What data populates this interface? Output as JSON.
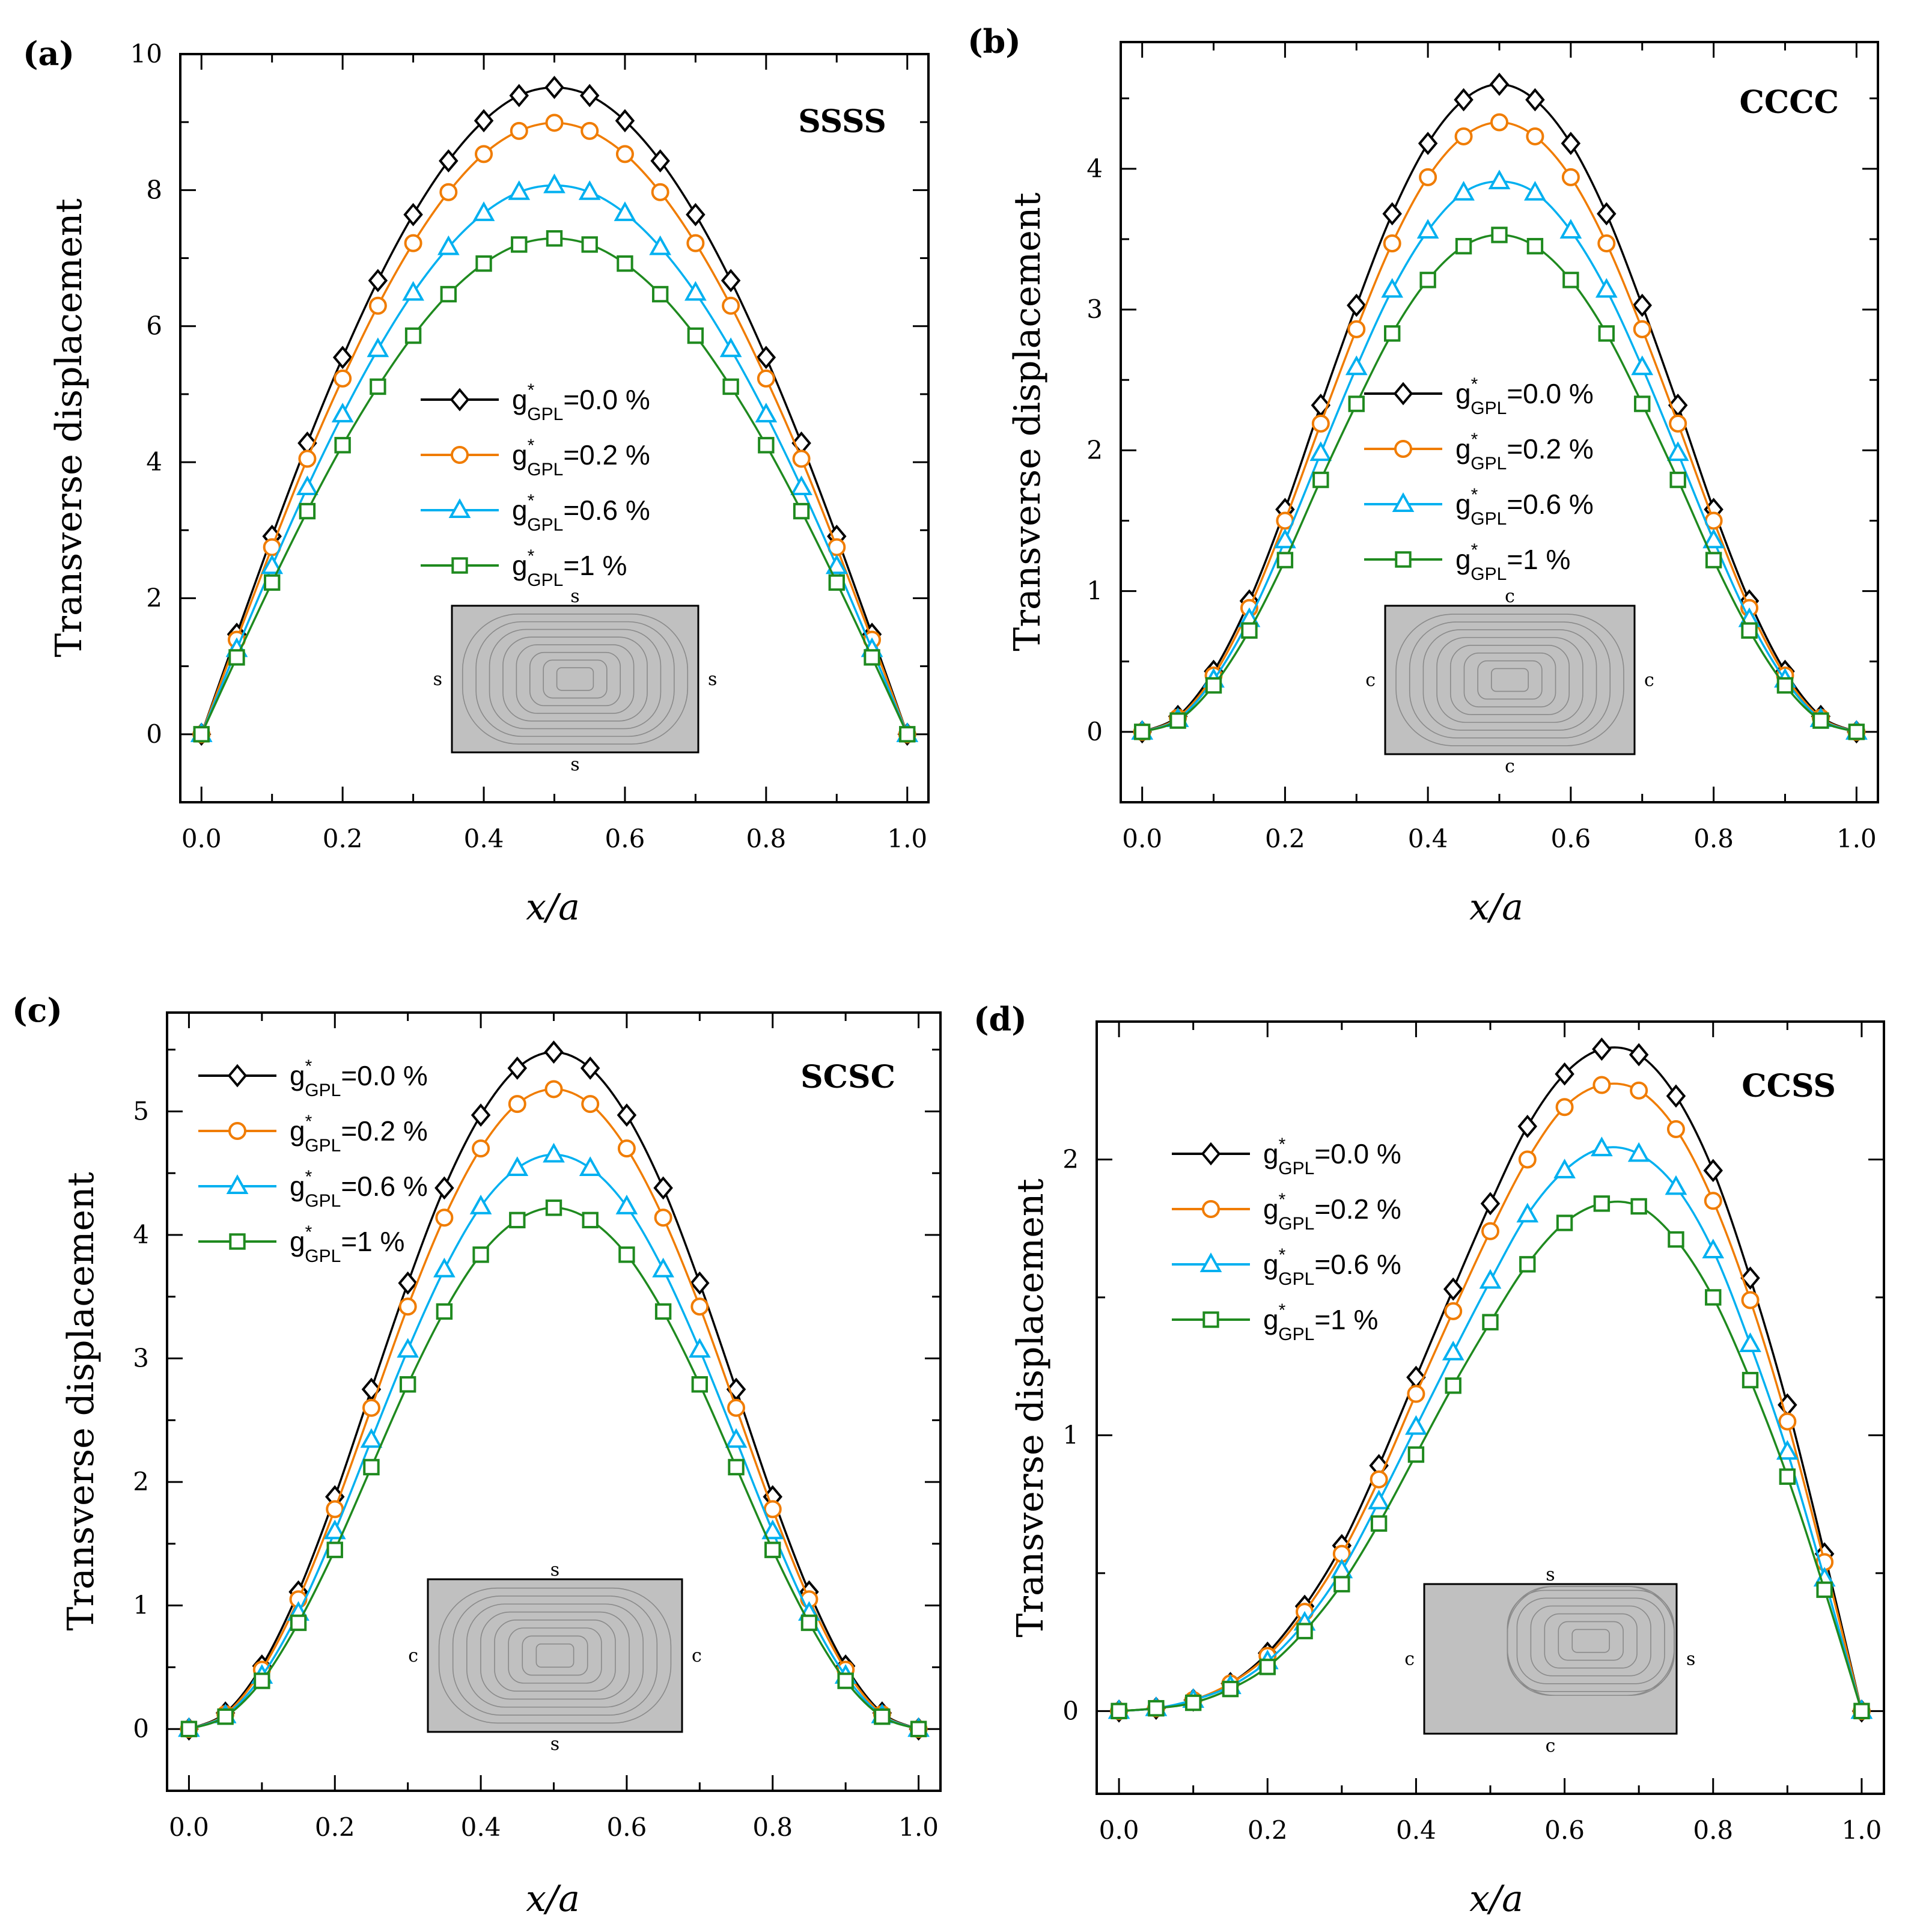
{
  "colors": {
    "s0": "#000000",
    "s1": "#f07c00",
    "s2": "#00b0f0",
    "s3": "#1f8a1f",
    "plate_fill": "#c0c0c0",
    "contour": "#8a8a8a"
  },
  "legend_template": {
    "g": "g",
    "star": "*",
    "sub": "GPL"
  },
  "chart_data": [
    {
      "type": "line",
      "panel": "(a)",
      "title": "SSSS",
      "xlabel": "x/a",
      "ylabel": "Transverse displacement",
      "xlim": [
        -0.03,
        1.03
      ],
      "ylim": [
        -1,
        10
      ],
      "xticks": [
        "0.0",
        "0.2",
        "0.4",
        "0.6",
        "0.8",
        "1.0"
      ],
      "yticks": [
        "0",
        "2",
        "4",
        "6",
        "8",
        "10"
      ],
      "legend_position": "center",
      "edges": {
        "top": "s",
        "bottom": "s",
        "left": "s",
        "right": "s"
      },
      "x": [
        0,
        0.05,
        0.1,
        0.15,
        0.2,
        0.25,
        0.3,
        0.35,
        0.4,
        0.45,
        0.5,
        0.55,
        0.6,
        0.65,
        0.7,
        0.75,
        0.8,
        0.85,
        0.9,
        0.95,
        1.0
      ],
      "series": [
        {
          "name_value": "=0.0 %",
          "marker": "diamond",
          "values": [
            0,
            1.47,
            2.91,
            4.28,
            5.54,
            6.67,
            7.64,
            8.43,
            9.02,
            9.39,
            9.51,
            9.39,
            9.02,
            8.43,
            7.64,
            6.67,
            5.54,
            4.28,
            2.91,
            1.47,
            0
          ]
        },
        {
          "name_value": "=0.2 %",
          "marker": "circle",
          "values": [
            0,
            1.39,
            2.75,
            4.05,
            5.23,
            6.3,
            7.22,
            7.97,
            8.53,
            8.87,
            8.99,
            8.87,
            8.53,
            7.97,
            7.22,
            6.3,
            5.23,
            4.05,
            2.75,
            1.39,
            0
          ]
        },
        {
          "name_value": "=0.6 %",
          "marker": "triangle",
          "values": [
            0,
            1.25,
            2.47,
            3.63,
            4.7,
            5.66,
            6.49,
            7.16,
            7.66,
            7.97,
            8.07,
            7.97,
            7.66,
            7.16,
            6.49,
            5.66,
            4.7,
            3.63,
            2.47,
            1.25,
            0
          ]
        },
        {
          "name_value": "=1 %",
          "marker": "square",
          "values": [
            0,
            1.13,
            2.23,
            3.28,
            4.25,
            5.11,
            5.86,
            6.47,
            6.92,
            7.2,
            7.29,
            7.2,
            6.92,
            6.47,
            5.86,
            5.11,
            4.25,
            3.28,
            2.23,
            1.13,
            0
          ]
        }
      ]
    },
    {
      "type": "line",
      "panel": "(b)",
      "title": "CCCC",
      "xlabel": "x/a",
      "ylabel": "Transverse displacement",
      "xlim": [
        -0.03,
        1.03
      ],
      "ylim": [
        -0.5,
        4.9
      ],
      "xticks": [
        "0.0",
        "0.2",
        "0.4",
        "0.6",
        "0.8",
        "1.0"
      ],
      "yticks": [
        "0",
        "1",
        "2",
        "3",
        "4"
      ],
      "legend_position": "center",
      "edges": {
        "top": "c",
        "bottom": "c",
        "left": "c",
        "right": "c"
      },
      "x": [
        0,
        0.05,
        0.1,
        0.15,
        0.2,
        0.25,
        0.3,
        0.35,
        0.4,
        0.45,
        0.5,
        0.55,
        0.6,
        0.65,
        0.7,
        0.75,
        0.8,
        0.85,
        0.9,
        0.95,
        1.0
      ],
      "series": [
        {
          "name_value": "=0.0 %",
          "marker": "diamond",
          "values": [
            0,
            0.11,
            0.43,
            0.93,
            1.58,
            2.32,
            3.03,
            3.68,
            4.18,
            4.49,
            4.6,
            4.49,
            4.18,
            3.68,
            3.03,
            2.32,
            1.58,
            0.93,
            0.43,
            0.11,
            0
          ]
        },
        {
          "name_value": "=0.2 %",
          "marker": "circle",
          "values": [
            0,
            0.1,
            0.4,
            0.88,
            1.5,
            2.19,
            2.86,
            3.47,
            3.94,
            4.23,
            4.33,
            4.23,
            3.94,
            3.47,
            2.86,
            2.19,
            1.5,
            0.88,
            0.4,
            0.1,
            0
          ]
        },
        {
          "name_value": "=0.6 %",
          "marker": "triangle",
          "values": [
            0,
            0.09,
            0.37,
            0.8,
            1.36,
            1.98,
            2.59,
            3.14,
            3.56,
            3.83,
            3.91,
            3.83,
            3.56,
            3.14,
            2.59,
            1.98,
            1.36,
            0.8,
            0.37,
            0.09,
            0
          ]
        },
        {
          "name_value": "=1 %",
          "marker": "square",
          "values": [
            0,
            0.08,
            0.33,
            0.72,
            1.22,
            1.79,
            2.33,
            2.83,
            3.21,
            3.45,
            3.53,
            3.45,
            3.21,
            2.83,
            2.33,
            1.79,
            1.22,
            0.72,
            0.33,
            0.08,
            0
          ]
        }
      ]
    },
    {
      "type": "line",
      "panel": "(c)",
      "title": "SCSC",
      "xlabel": "x/a",
      "ylabel": "Transverse displacement",
      "xlim": [
        -0.03,
        1.03
      ],
      "ylim": [
        -0.5,
        5.8
      ],
      "xticks": [
        "0.0",
        "0.2",
        "0.4",
        "0.6",
        "0.8",
        "1.0"
      ],
      "yticks": [
        "0",
        "1",
        "2",
        "3",
        "4",
        "5"
      ],
      "legend_position": "top-left",
      "edges": {
        "top": "s",
        "bottom": "s",
        "left": "c",
        "right": "c"
      },
      "x": [
        0,
        0.05,
        0.1,
        0.15,
        0.2,
        0.25,
        0.3,
        0.35,
        0.4,
        0.45,
        0.5,
        0.55,
        0.6,
        0.65,
        0.7,
        0.75,
        0.8,
        0.85,
        0.9,
        0.95,
        1.0
      ],
      "series": [
        {
          "name_value": "=0.0 %",
          "marker": "diamond",
          "values": [
            0,
            0.13,
            0.51,
            1.11,
            1.88,
            2.75,
            3.61,
            4.38,
            4.97,
            5.35,
            5.48,
            5.35,
            4.97,
            4.38,
            3.61,
            2.75,
            1.88,
            1.11,
            0.51,
            0.13,
            0
          ]
        },
        {
          "name_value": "=0.2 %",
          "marker": "circle",
          "values": [
            0,
            0.12,
            0.48,
            1.05,
            1.78,
            2.6,
            3.42,
            4.14,
            4.7,
            5.06,
            5.18,
            5.06,
            4.7,
            4.14,
            3.42,
            2.6,
            1.78,
            1.05,
            0.48,
            0.12,
            0
          ]
        },
        {
          "name_value": "=0.6 %",
          "marker": "triangle",
          "values": [
            0,
            0.11,
            0.43,
            0.94,
            1.6,
            2.34,
            3.07,
            3.72,
            4.23,
            4.54,
            4.65,
            4.54,
            4.23,
            3.72,
            3.07,
            2.34,
            1.6,
            0.94,
            0.43,
            0.11,
            0
          ]
        },
        {
          "name_value": "=1 %",
          "marker": "square",
          "values": [
            0,
            0.1,
            0.39,
            0.86,
            1.45,
            2.12,
            2.79,
            3.38,
            3.84,
            4.12,
            4.22,
            4.12,
            3.84,
            3.38,
            2.79,
            2.12,
            1.45,
            0.86,
            0.39,
            0.1,
            0
          ]
        }
      ]
    },
    {
      "type": "line",
      "panel": "(d)",
      "title": "CCSS",
      "xlabel": "x/a",
      "ylabel": "Transverse displacement",
      "xlim": [
        -0.03,
        1.03
      ],
      "ylim": [
        -0.3,
        2.5
      ],
      "xticks": [
        "0.0",
        "0.2",
        "0.4",
        "0.6",
        "0.8",
        "1.0"
      ],
      "yticks": [
        "0",
        "1",
        "2"
      ],
      "legend_position": "top-left",
      "edges": {
        "top": "s",
        "bottom": "c",
        "left": "c",
        "right": "s"
      },
      "x": [
        0,
        0.05,
        0.1,
        0.15,
        0.2,
        0.25,
        0.3,
        0.35,
        0.4,
        0.45,
        0.5,
        0.55,
        0.6,
        0.65,
        0.7,
        0.75,
        0.8,
        0.85,
        0.9,
        0.95,
        1.0
      ],
      "series": [
        {
          "name_value": "=0.0 %",
          "marker": "diamond",
          "values": [
            0,
            0.01,
            0.04,
            0.1,
            0.21,
            0.38,
            0.6,
            0.89,
            1.21,
            1.53,
            1.84,
            2.12,
            2.31,
            2.4,
            2.38,
            2.23,
            1.96,
            1.57,
            1.11,
            0.57,
            0
          ]
        },
        {
          "name_value": "=0.2 %",
          "marker": "circle",
          "values": [
            0,
            0.01,
            0.04,
            0.1,
            0.2,
            0.36,
            0.57,
            0.84,
            1.15,
            1.45,
            1.74,
            2.0,
            2.19,
            2.27,
            2.25,
            2.11,
            1.85,
            1.49,
            1.05,
            0.54,
            0
          ]
        },
        {
          "name_value": "=0.6 %",
          "marker": "triangle",
          "values": [
            0,
            0.01,
            0.04,
            0.09,
            0.18,
            0.32,
            0.51,
            0.76,
            1.03,
            1.3,
            1.56,
            1.8,
            1.96,
            2.04,
            2.02,
            1.9,
            1.67,
            1.33,
            0.94,
            0.48,
            0
          ]
        },
        {
          "name_value": "=1 %",
          "marker": "square",
          "values": [
            0,
            0.01,
            0.03,
            0.08,
            0.16,
            0.29,
            0.46,
            0.68,
            0.93,
            1.18,
            1.41,
            1.62,
            1.77,
            1.84,
            1.83,
            1.71,
            1.5,
            1.2,
            0.85,
            0.44,
            0
          ]
        }
      ]
    }
  ]
}
